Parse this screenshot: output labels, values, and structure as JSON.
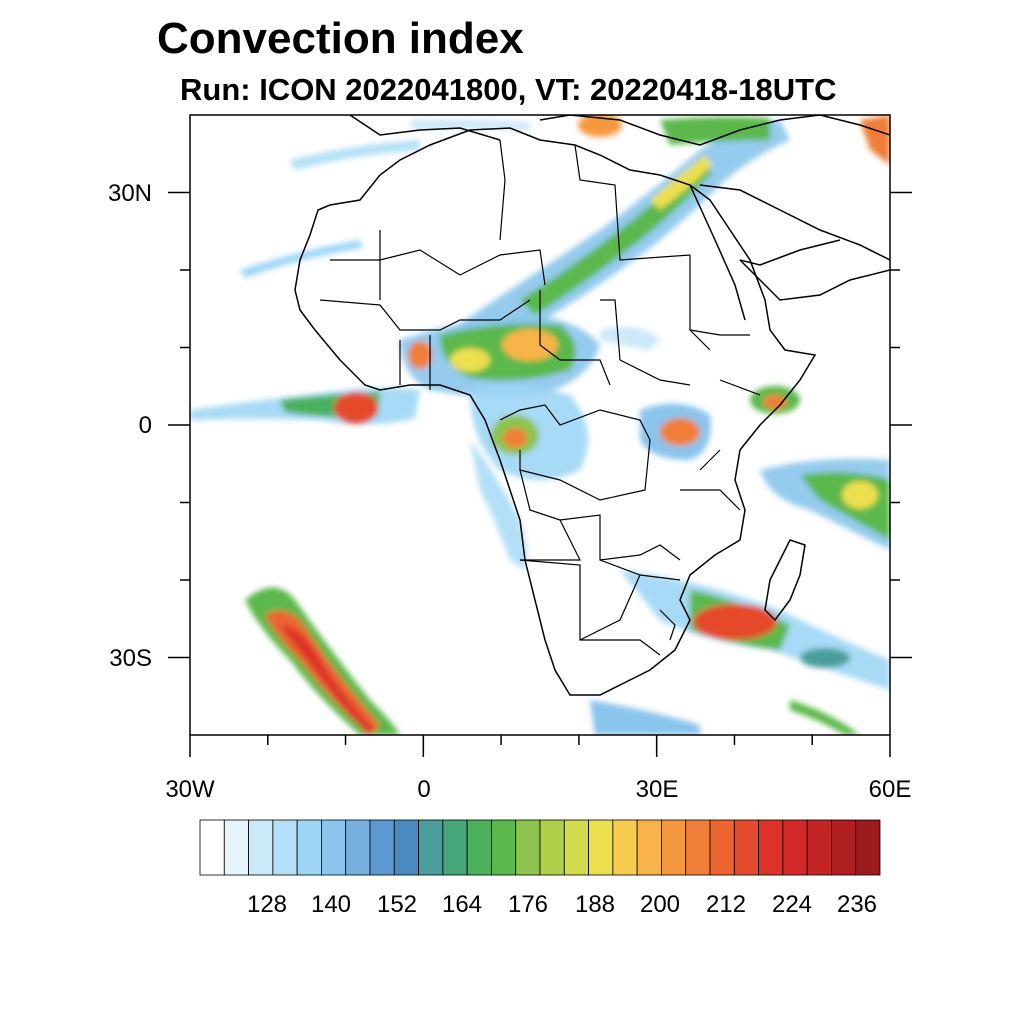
{
  "title": "Convection index",
  "subtitle": "Run: ICON 2022041800,  VT: 20220418-18UTC",
  "map": {
    "lon_range": [
      -30,
      60
    ],
    "lat_range": [
      -40,
      40
    ],
    "x_ticks": [
      {
        "value": -30,
        "label": "30W"
      },
      {
        "value": 0,
        "label": "0"
      },
      {
        "value": 30,
        "label": "30E"
      },
      {
        "value": 60,
        "label": "60E"
      }
    ],
    "y_ticks": [
      {
        "value": 30,
        "label": "30N"
      },
      {
        "value": 0,
        "label": "0"
      },
      {
        "value": -30,
        "label": "30S"
      }
    ]
  },
  "colorbar": {
    "colors": [
      "#ffffff",
      "#e6f4fc",
      "#cce9f8",
      "#b3e0f7",
      "#9dd6f5",
      "#8ac5ec",
      "#76b1e0",
      "#5c99d0",
      "#4a8ac0",
      "#4a9e9c",
      "#46a67a",
      "#4cb05c",
      "#5cb84c",
      "#8cc44e",
      "#b0d04c",
      "#d0dc4c",
      "#ece050",
      "#f8cc50",
      "#f8b448",
      "#f49840",
      "#f07e38",
      "#ec6430",
      "#e44a2c",
      "#dc3228",
      "#d22828",
      "#c42424",
      "#b02020",
      "#9c1c1c"
    ],
    "labels": [
      "128",
      "140",
      "152",
      "164",
      "176",
      "188",
      "200",
      "212",
      "224",
      "236"
    ]
  }
}
